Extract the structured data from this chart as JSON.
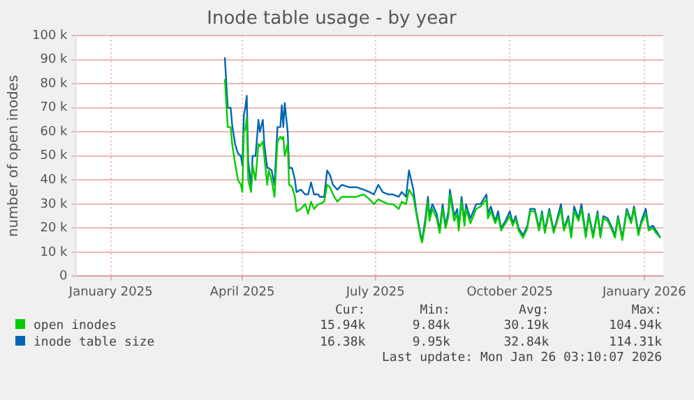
{
  "chart_data": {
    "type": "line",
    "title": "Inode table usage - by year",
    "ylabel": "number of open inodes",
    "x": [
      "2025-04-03",
      "2025-04-05",
      "2025-04-07",
      "2025-04-08",
      "2025-04-10",
      "2025-04-12",
      "2025-04-14",
      "2025-04-15",
      "2025-04-16",
      "2025-04-17",
      "2025-04-18",
      "2025-04-19",
      "2025-04-21",
      "2025-04-22",
      "2025-04-24",
      "2025-04-26",
      "2025-04-27",
      "2025-04-29",
      "2025-04-30",
      "2025-05-02",
      "2025-05-03",
      "2025-05-05",
      "2025-05-07",
      "2025-05-09",
      "2025-05-11",
      "2025-05-12",
      "2025-05-13",
      "2025-05-14",
      "2025-05-16",
      "2025-05-17",
      "2025-05-19",
      "2025-05-21",
      "2025-05-22",
      "2025-05-25",
      "2025-05-28",
      "2025-05-30",
      "2025-06-01",
      "2025-06-03",
      "2025-06-06",
      "2025-06-07",
      "2025-06-10",
      "2025-06-12",
      "2025-06-14",
      "2025-06-16",
      "2025-06-19",
      "2025-06-22",
      "2025-06-27",
      "2025-07-02",
      "2025-07-07",
      "2025-07-11",
      "2025-07-14",
      "2025-07-17",
      "2025-07-20",
      "2025-07-24",
      "2025-07-27",
      "2025-07-31",
      "2025-08-02",
      "2025-08-05",
      "2025-08-07",
      "2025-08-10",
      "2025-08-12",
      "2025-08-15",
      "2025-08-16",
      "2025-08-18",
      "2025-08-20",
      "2025-08-21",
      "2025-08-23",
      "2025-08-26",
      "2025-08-28",
      "2025-08-30",
      "2025-09-01",
      "2025-09-03",
      "2025-09-04",
      "2025-09-07",
      "2025-09-09",
      "2025-09-10",
      "2025-09-12",
      "2025-09-14",
      "2025-09-15",
      "2025-09-18",
      "2025-09-20",
      "2025-09-22",
      "2025-09-25",
      "2025-09-29",
      "2025-09-30",
      "2025-10-02",
      "2025-10-05",
      "2025-10-07",
      "2025-10-09",
      "2025-10-12",
      "2025-10-15",
      "2025-10-17",
      "2025-10-19",
      "2025-10-21",
      "2025-10-24",
      "2025-10-27",
      "2025-10-29",
      "2025-11-01",
      "2025-11-04",
      "2025-11-06",
      "2025-11-08",
      "2025-11-11",
      "2025-11-14",
      "2025-11-16",
      "2025-11-19",
      "2025-11-21",
      "2025-11-24",
      "2025-11-26",
      "2025-11-28",
      "2025-12-01",
      "2025-12-03",
      "2025-12-06",
      "2025-12-08",
      "2025-12-11",
      "2025-12-14",
      "2025-12-16",
      "2025-12-18",
      "2025-12-21",
      "2025-12-24",
      "2025-12-26",
      "2025-12-28",
      "2025-12-31",
      "2026-01-03",
      "2026-01-06",
      "2026-01-08",
      "2026-01-11",
      "2026-01-13",
      "2026-01-16",
      "2026-01-18",
      "2026-01-21",
      "2026-01-23",
      "2026-01-26"
    ],
    "series": [
      {
        "name": "open inodes",
        "color": "#00cc00",
        "values": [
          82000,
          62000,
          62000,
          55000,
          47000,
          40000,
          38000,
          35000,
          60000,
          61000,
          66000,
          40000,
          35000,
          46000,
          40000,
          55000,
          54000,
          56000,
          50000,
          38000,
          44000,
          40000,
          33000,
          56000,
          58000,
          57000,
          58000,
          50000,
          55000,
          38000,
          37000,
          33000,
          27000,
          28000,
          30000,
          26000,
          31000,
          28000,
          30000,
          30000,
          31000,
          38000,
          37000,
          34000,
          31000,
          33000,
          33000,
          33000,
          34000,
          32000,
          30000,
          32000,
          31000,
          30000,
          30000,
          28000,
          31000,
          30000,
          36000,
          33000,
          26000,
          16000,
          14000,
          21000,
          31000,
          23000,
          28000,
          24000,
          18000,
          28000,
          20000,
          25000,
          34000,
          23000,
          26000,
          19000,
          31000,
          21000,
          28000,
          22000,
          25000,
          28000,
          29000,
          32000,
          24000,
          27000,
          22000,
          25000,
          19000,
          22000,
          25000,
          21000,
          24000,
          19000,
          16000,
          20000,
          27000,
          27000,
          19000,
          26000,
          18000,
          27000,
          18000,
          22000,
          28000,
          19000,
          24000,
          16000,
          27000,
          23000,
          28000,
          16000,
          25000,
          16000,
          26000,
          16000,
          24000,
          23000,
          19000,
          16000,
          24000,
          15000,
          27000,
          22000,
          28000,
          17000,
          22000,
          26000,
          19000,
          20000,
          18000,
          16000
        ]
      },
      {
        "name": "inode table size",
        "color": "#0066b3",
        "values": [
          91000,
          70000,
          70000,
          63000,
          55000,
          51000,
          50000,
          46000,
          67000,
          70000,
          75000,
          48000,
          37000,
          50000,
          50000,
          65000,
          60000,
          65000,
          55000,
          45000,
          45000,
          44000,
          38000,
          62000,
          62000,
          71000,
          62000,
          72000,
          60000,
          45000,
          45000,
          40000,
          35000,
          36000,
          34000,
          34000,
          39000,
          34000,
          34000,
          33000,
          33000,
          44000,
          42000,
          38000,
          36000,
          38000,
          37000,
          37000,
          36000,
          35000,
          34000,
          38000,
          35000,
          34000,
          34000,
          33000,
          35000,
          33000,
          44000,
          36000,
          27000,
          17000,
          15000,
          23000,
          33000,
          25000,
          30000,
          26000,
          19000,
          30000,
          21000,
          27000,
          36000,
          25000,
          28000,
          20000,
          33000,
          22000,
          30000,
          24000,
          27000,
          30000,
          30000,
          34000,
          26000,
          29000,
          23000,
          27000,
          20000,
          23000,
          27000,
          22000,
          25000,
          20000,
          17000,
          21000,
          28000,
          28000,
          20000,
          27000,
          19000,
          28000,
          19000,
          23000,
          30000,
          20000,
          25000,
          17000,
          29000,
          24000,
          30000,
          17000,
          26000,
          17000,
          27000,
          17000,
          25000,
          24000,
          20000,
          17000,
          25000,
          16000,
          28000,
          23000,
          29000,
          18000,
          23000,
          28000,
          20000,
          21000,
          19000,
          16000
        ]
      }
    ],
    "xlim": [
      "2024-12-22",
      "2026-01-28"
    ],
    "xticks": [
      {
        "value": "2025-01-15",
        "label": "January 2025"
      },
      {
        "value": "2025-04-15",
        "label": "April 2025"
      },
      {
        "value": "2025-07-15",
        "label": "July 2025"
      },
      {
        "value": "2025-10-15",
        "label": "October 2025"
      },
      {
        "value": "2026-01-15",
        "label": "January 2026"
      }
    ],
    "ylim": [
      0,
      100000
    ],
    "yticks": [
      {
        "value": 0,
        "label": "0"
      },
      {
        "value": 10000,
        "label": "10 k"
      },
      {
        "value": 20000,
        "label": "20 k"
      },
      {
        "value": 30000,
        "label": "30 k"
      },
      {
        "value": 40000,
        "label": "40 k"
      },
      {
        "value": 50000,
        "label": "50 k"
      },
      {
        "value": 60000,
        "label": "60 k"
      },
      {
        "value": 70000,
        "label": "70 k"
      },
      {
        "value": 80000,
        "label": "80 k"
      },
      {
        "value": 90000,
        "label": "90 k"
      },
      {
        "value": 100000,
        "label": "100 k"
      }
    ],
    "grid": true,
    "legend": "bottom left",
    "marker": "none",
    "line_style": "solid",
    "annotations": [
      "Cur:",
      "Min:",
      "Avg:",
      "Max:",
      "15.94k",
      "9.84k",
      "30.19k",
      "104.94k",
      "16.38k",
      "9.95k",
      "32.84k",
      "114.31k",
      "Last update: Mon Jan 26 03:10:07 2026"
    ]
  }
}
